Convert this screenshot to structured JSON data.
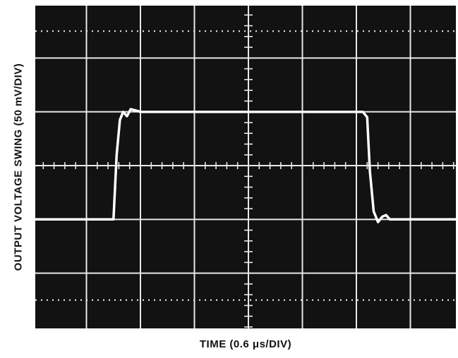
{
  "chart_data": {
    "type": "line",
    "title": "",
    "xlabel": "TIME (0.6 μs/DIV)",
    "ylabel": "OUTPUT VOLTAGE SWING (50 mV/DIV)",
    "grid": true,
    "x_divisions": 8,
    "y_divisions": 6,
    "xlim": [
      0,
      8
    ],
    "ylim": [
      0,
      6
    ],
    "series": [
      {
        "x": [
          0.0,
          1.35,
          1.5,
          1.56,
          1.62,
          1.68,
          1.75,
          1.82,
          1.9,
          2.0,
          6.05,
          6.12,
          6.2,
          6.25,
          6.32,
          6.4,
          6.48,
          6.55,
          6.62,
          8.0
        ],
        "y": [
          2.0,
          2.0,
          2.0,
          3.2,
          3.85,
          4.0,
          3.92,
          4.05,
          4.03,
          4.0,
          4.0,
          4.0,
          3.9,
          2.9,
          2.15,
          1.95,
          2.05,
          2.08,
          2.0,
          2.0
        ]
      }
    ]
  }
}
